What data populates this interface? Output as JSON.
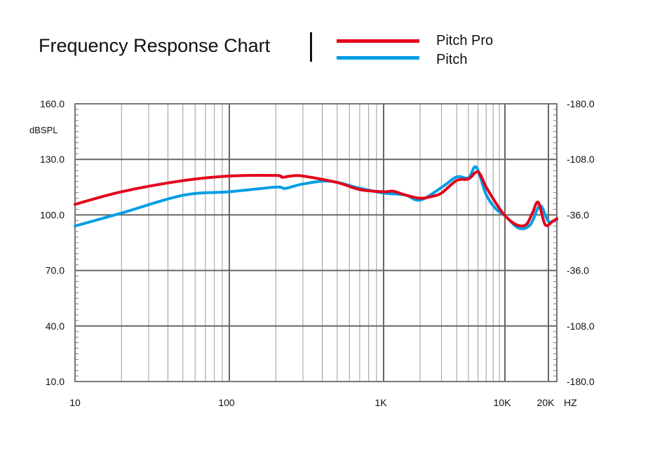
{
  "chart_data": {
    "type": "line",
    "title": "Frequency Response Chart",
    "ylabel": "dBSPL",
    "xunit": "HZ",
    "xscale": "log",
    "xlim": [
      10,
      24000
    ],
    "ylim": [
      10,
      160
    ],
    "x_tick_labels": [
      "10",
      "100",
      "1K",
      "10K",
      "20K"
    ],
    "x_tick_values": [
      10,
      100,
      1000,
      10000,
      20000
    ],
    "y_tick_labels": [
      "160.0",
      "130.0",
      "100.0",
      "70.0",
      "40.0",
      "10.0"
    ],
    "y_tick_values": [
      160,
      130,
      100,
      70,
      40,
      10
    ],
    "y2_tick_labels": [
      "-180.0",
      "-108.0",
      "-36.0",
      "-36.0",
      "-108.0",
      "-180.0"
    ],
    "grid": true,
    "legend_position": "top",
    "series": [
      {
        "name": "Pitch Pro",
        "color": "#e3001b",
        "x": [
          10,
          20,
          50,
          100,
          200,
          220,
          250,
          300,
          500,
          700,
          1000,
          1200,
          1500,
          2000,
          2500,
          3000,
          4000,
          5000,
          6000,
          7000,
          8500,
          10000,
          12000,
          14000,
          15500,
          17000,
          19000,
          22000,
          24000
        ],
        "y": [
          105.7,
          112.5,
          118.5,
          121,
          121.3,
          120.3,
          121,
          121,
          117.5,
          113.7,
          112.5,
          112.8,
          110.8,
          109,
          110,
          111.8,
          118.6,
          119.4,
          123.2,
          115,
          106,
          99.6,
          94.7,
          94.7,
          101,
          106.8,
          94.7,
          96.6,
          98
        ]
      },
      {
        "name": "Pitch",
        "color": "#009ee3",
        "x": [
          10,
          20,
          50,
          100,
          200,
          230,
          300,
          450,
          700,
          1000,
          1500,
          2000,
          3000,
          4000,
          5000,
          5800,
          7000,
          8500,
          10000,
          12500,
          15000,
          17500,
          20000,
          24000
        ],
        "y": [
          94,
          101,
          110.6,
          112.5,
          115,
          114.3,
          116.7,
          118.2,
          114.4,
          111.8,
          110.8,
          108,
          114.8,
          120.5,
          120,
          125.8,
          111,
          103,
          99.6,
          92.8,
          94.7,
          105,
          96.5,
          97.5
        ]
      }
    ]
  }
}
